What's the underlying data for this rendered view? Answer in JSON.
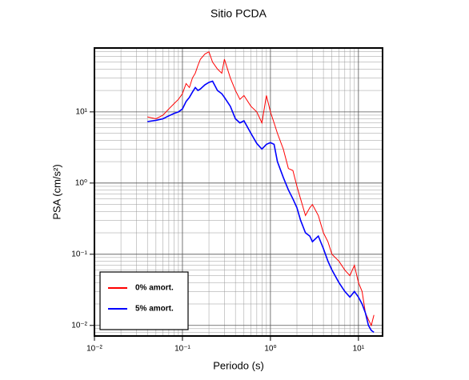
{
  "chart_data": {
    "type": "line",
    "title": "Sitio PCDA",
    "x_label": "Periodo (s)",
    "y_label": "PSA (cm/s²)",
    "log_x": true,
    "log_y": true,
    "grid": true,
    "legend_position": "lower left",
    "xlim": [
      0.01,
      18.8
    ],
    "ylim": [
      0.0071,
      79
    ],
    "xticks": [
      {
        "value": 0.01,
        "label": "10⁻²"
      },
      {
        "value": 0.1,
        "label": "10⁻¹"
      },
      {
        "value": 1,
        "label": "10⁰"
      },
      {
        "value": 10,
        "label": "10¹"
      }
    ],
    "yticks": [
      {
        "value": 0.01,
        "label": "10⁻²"
      },
      {
        "value": 0.1,
        "label": "10⁻¹"
      },
      {
        "value": 1,
        "label": "10⁰"
      },
      {
        "value": 10,
        "label": "10¹"
      }
    ],
    "x": [
      0.04,
      0.05,
      0.06,
      0.07,
      0.08,
      0.09,
      0.1,
      0.11,
      0.12,
      0.13,
      0.14,
      0.15,
      0.16,
      0.18,
      0.2,
      0.22,
      0.25,
      0.28,
      0.3,
      0.35,
      0.4,
      0.45,
      0.5,
      0.6,
      0.7,
      0.8,
      0.9,
      1.0,
      1.1,
      1.2,
      1.4,
      1.6,
      1.8,
      2.0,
      2.2,
      2.5,
      2.8,
      3.0,
      3.5,
      4.0,
      4.5,
      5.0,
      6.0,
      7.0,
      8.0,
      9.0,
      10,
      11,
      12,
      13,
      14,
      15
    ],
    "series": [
      {
        "name": "0% amort.",
        "color": "#ff0000",
        "values": [
          8.5,
          8,
          9,
          11,
          13,
          15,
          18,
          25,
          22,
          30,
          35,
          45,
          55,
          65,
          70,
          50,
          40,
          35,
          55,
          30,
          20,
          15,
          17,
          12,
          10,
          7,
          17,
          10,
          7,
          5,
          3,
          1.6,
          1.5,
          0.9,
          0.6,
          0.35,
          0.45,
          0.5,
          0.35,
          0.2,
          0.15,
          0.1,
          0.08,
          0.06,
          0.05,
          0.07,
          0.04,
          0.03,
          0.015,
          0.012,
          0.01,
          0.014
        ]
      },
      {
        "name": "5% amort.",
        "color": "#0000ff",
        "values": [
          7.3,
          7.6,
          8,
          8.8,
          9.5,
          10,
          11,
          14,
          16,
          19,
          22,
          20,
          21,
          24,
          26,
          27,
          20,
          18,
          16,
          12,
          8,
          7,
          7.5,
          5,
          3.6,
          3,
          3.5,
          3.7,
          3.5,
          2,
          1.2,
          0.8,
          0.6,
          0.45,
          0.3,
          0.2,
          0.18,
          0.15,
          0.18,
          0.12,
          0.08,
          0.06,
          0.04,
          0.03,
          0.025,
          0.03,
          0.025,
          0.02,
          0.015,
          0.01,
          0.0085,
          0.008
        ]
      }
    ]
  }
}
